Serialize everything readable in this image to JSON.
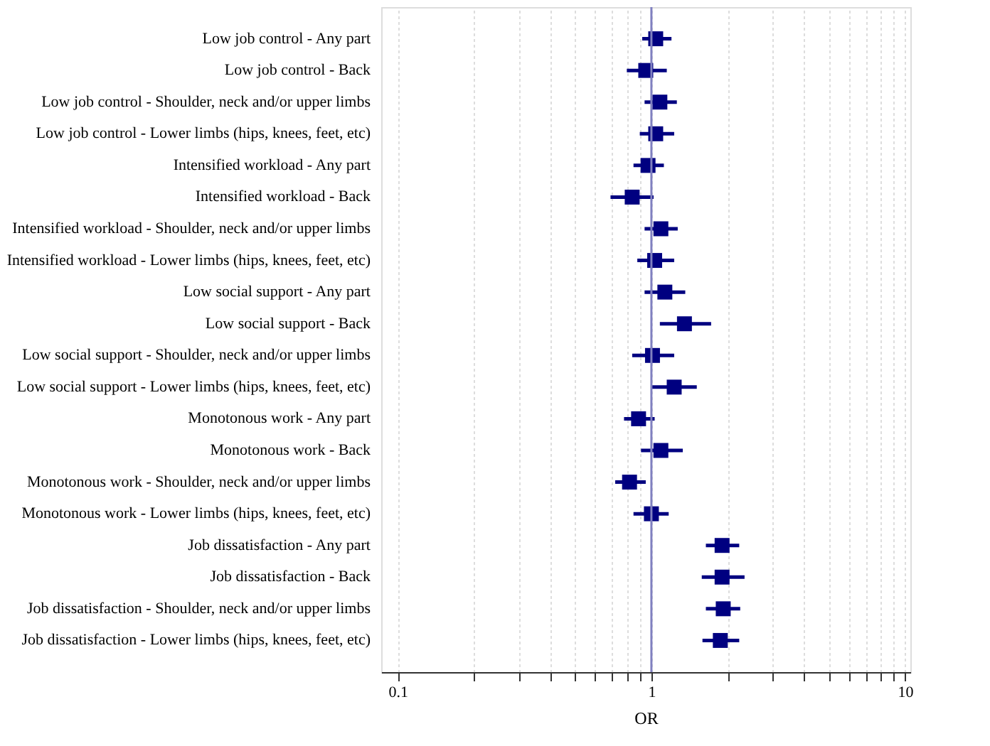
{
  "chart_data": {
    "type": "scatter",
    "orientation": "horizontal",
    "xlabel": "OR",
    "marker": "square",
    "grid": "x",
    "log": "x",
    "categories": [
      "Low job control - Any part",
      "Low job control - Back",
      "Low job control - Shoulder, neck and/or upper limbs",
      "Low job control - Lower limbs (hips, knees, feet, etc)",
      "Intensified workload - Any part",
      "Intensified workload - Back",
      "Intensified workload - Shoulder, neck and/or upper limbs",
      "Intensified workload - Lower limbs (hips, knees, feet, etc)",
      "Low social support - Any part",
      "Low social support - Back",
      "Low social support - Shoulder, neck and/or upper limbs",
      "Low social support - Lower limbs (hips, knees, feet, etc)",
      "Monotonous work - Any part",
      "Monotonous work - Back",
      "Monotonous work - Shoulder, neck and/or upper limbs",
      "Monotonous work - Lower limbs (hips, knees, feet, etc)",
      "Job dissatisfaction - Any part",
      "Job dissatisfaction - Back",
      "Job dissatisfaction - Shoulder, neck and/or upper limbs",
      "Job dissatisfaction - Lower limbs (hips, knees, feet, etc)"
    ],
    "series": [
      {
        "color": "#000080",
        "values": [
          1.04,
          0.95,
          1.08,
          1.04,
          0.97,
          0.84,
          1.09,
          1.03,
          1.13,
          1.35,
          1.01,
          1.23,
          0.89,
          1.09,
          0.82,
          1.0,
          1.9,
          1.9,
          1.92,
          1.87
        ],
        "errors": [
          [
            0.92,
            1.2
          ],
          [
            0.8,
            1.15
          ],
          [
            0.94,
            1.26
          ],
          [
            0.9,
            1.23
          ],
          [
            0.85,
            1.12
          ],
          [
            0.69,
            1.02
          ],
          [
            0.94,
            1.27
          ],
          [
            0.88,
            1.23
          ],
          [
            0.94,
            1.36
          ],
          [
            1.08,
            1.72
          ],
          [
            0.84,
            1.23
          ],
          [
            1.0,
            1.51
          ],
          [
            0.78,
            1.03
          ],
          [
            0.91,
            1.33
          ],
          [
            0.72,
            0.95
          ],
          [
            0.85,
            1.17
          ],
          [
            1.64,
            2.22
          ],
          [
            1.58,
            2.33
          ],
          [
            1.64,
            2.24
          ],
          [
            1.59,
            2.22
          ]
        ]
      }
    ],
    "xlim": [
      0.086,
      10.5
    ],
    "xticks": [
      0.1,
      {
        "value": 0.2,
        "label": null
      },
      {
        "value": 0.3,
        "label": null
      },
      {
        "value": 0.4,
        "label": null
      },
      {
        "value": 0.5,
        "label": null
      },
      {
        "value": 0.6,
        "label": null
      },
      {
        "value": 0.7,
        "label": null
      },
      {
        "value": 0.8,
        "label": null
      },
      {
        "value": 0.9,
        "label": null
      },
      1,
      {
        "value": 2,
        "label": null
      },
      {
        "value": 3,
        "label": null
      },
      {
        "value": 4,
        "label": null
      },
      {
        "value": 5,
        "label": null
      },
      {
        "value": 6,
        "label": null
      },
      {
        "value": 7,
        "label": null
      },
      {
        "value": 8,
        "label": null
      },
      {
        "value": 9,
        "label": null
      },
      10
    ],
    "ref_lines": [
      {
        "axis": "x",
        "value": 1,
        "label": null,
        "color": "#8080c0"
      }
    ]
  }
}
